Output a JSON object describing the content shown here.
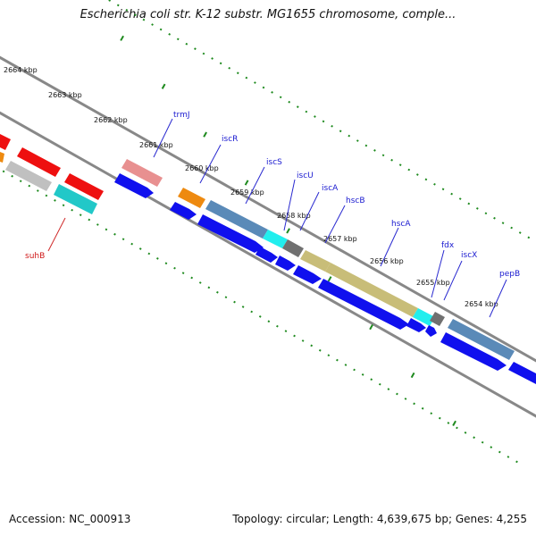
{
  "title": "Escherichia coli str. K-12 substr. MG1655 chromosome, comple...",
  "footer": {
    "accession": "Accession: NC_000913",
    "topology": "Topology: circular; Length: 4,639,675 bp; Genes: 4,255"
  },
  "scale_ticks": [
    {
      "kbp": 2664,
      "label": "2664 kbp"
    },
    {
      "kbp": 2663,
      "label": "2663 kbp"
    },
    {
      "kbp": 2662,
      "label": "2662 kbp"
    },
    {
      "kbp": 2661,
      "label": "2661 kbp"
    },
    {
      "kbp": 2660,
      "label": "2660 kbp"
    },
    {
      "kbp": 2659,
      "label": "2659 kbp"
    },
    {
      "kbp": 2658,
      "label": "2658 kbp"
    },
    {
      "kbp": 2657,
      "label": "2657 kbp"
    },
    {
      "kbp": 2656,
      "label": "2656 kbp"
    },
    {
      "kbp": 2655,
      "label": "2655 kbp"
    },
    {
      "kbp": 2654,
      "label": "2654 kbp"
    }
  ],
  "gene_labels": [
    {
      "name": "trmJ",
      "color": "#1a1ad0"
    },
    {
      "name": "iscR",
      "color": "#1a1ad0"
    },
    {
      "name": "iscS",
      "color": "#1a1ad0"
    },
    {
      "name": "iscU",
      "color": "#1a1ad0"
    },
    {
      "name": "iscA",
      "color": "#1a1ad0"
    },
    {
      "name": "hscB",
      "color": "#1a1ad0"
    },
    {
      "name": "hscA",
      "color": "#1a1ad0"
    },
    {
      "name": "fdx",
      "color": "#1a1ad0"
    },
    {
      "name": "iscX",
      "color": "#1a1ad0"
    },
    {
      "name": "pepB",
      "color": "#1a1ad0"
    },
    {
      "name": "suhB",
      "color": "#d01a1a"
    }
  ],
  "colors": {
    "backbone": "#888888",
    "tick": "#1e8a1e",
    "cds": "#1010ee",
    "trmJ": "#e89090",
    "iscR": "#ee8a10",
    "iscS": "#5a8ab8",
    "iscU": "#22eeee",
    "iscA": "#707070",
    "hscB": "#c8bd78",
    "hscA": "#c8bd78",
    "fdx": "#22eeee",
    "iscX": "#707070",
    "pepB": "#5a8ab8",
    "red_gene": "#ee1010",
    "grey_gene": "#c0c0c0",
    "cyan_gene": "#22c8c8"
  }
}
